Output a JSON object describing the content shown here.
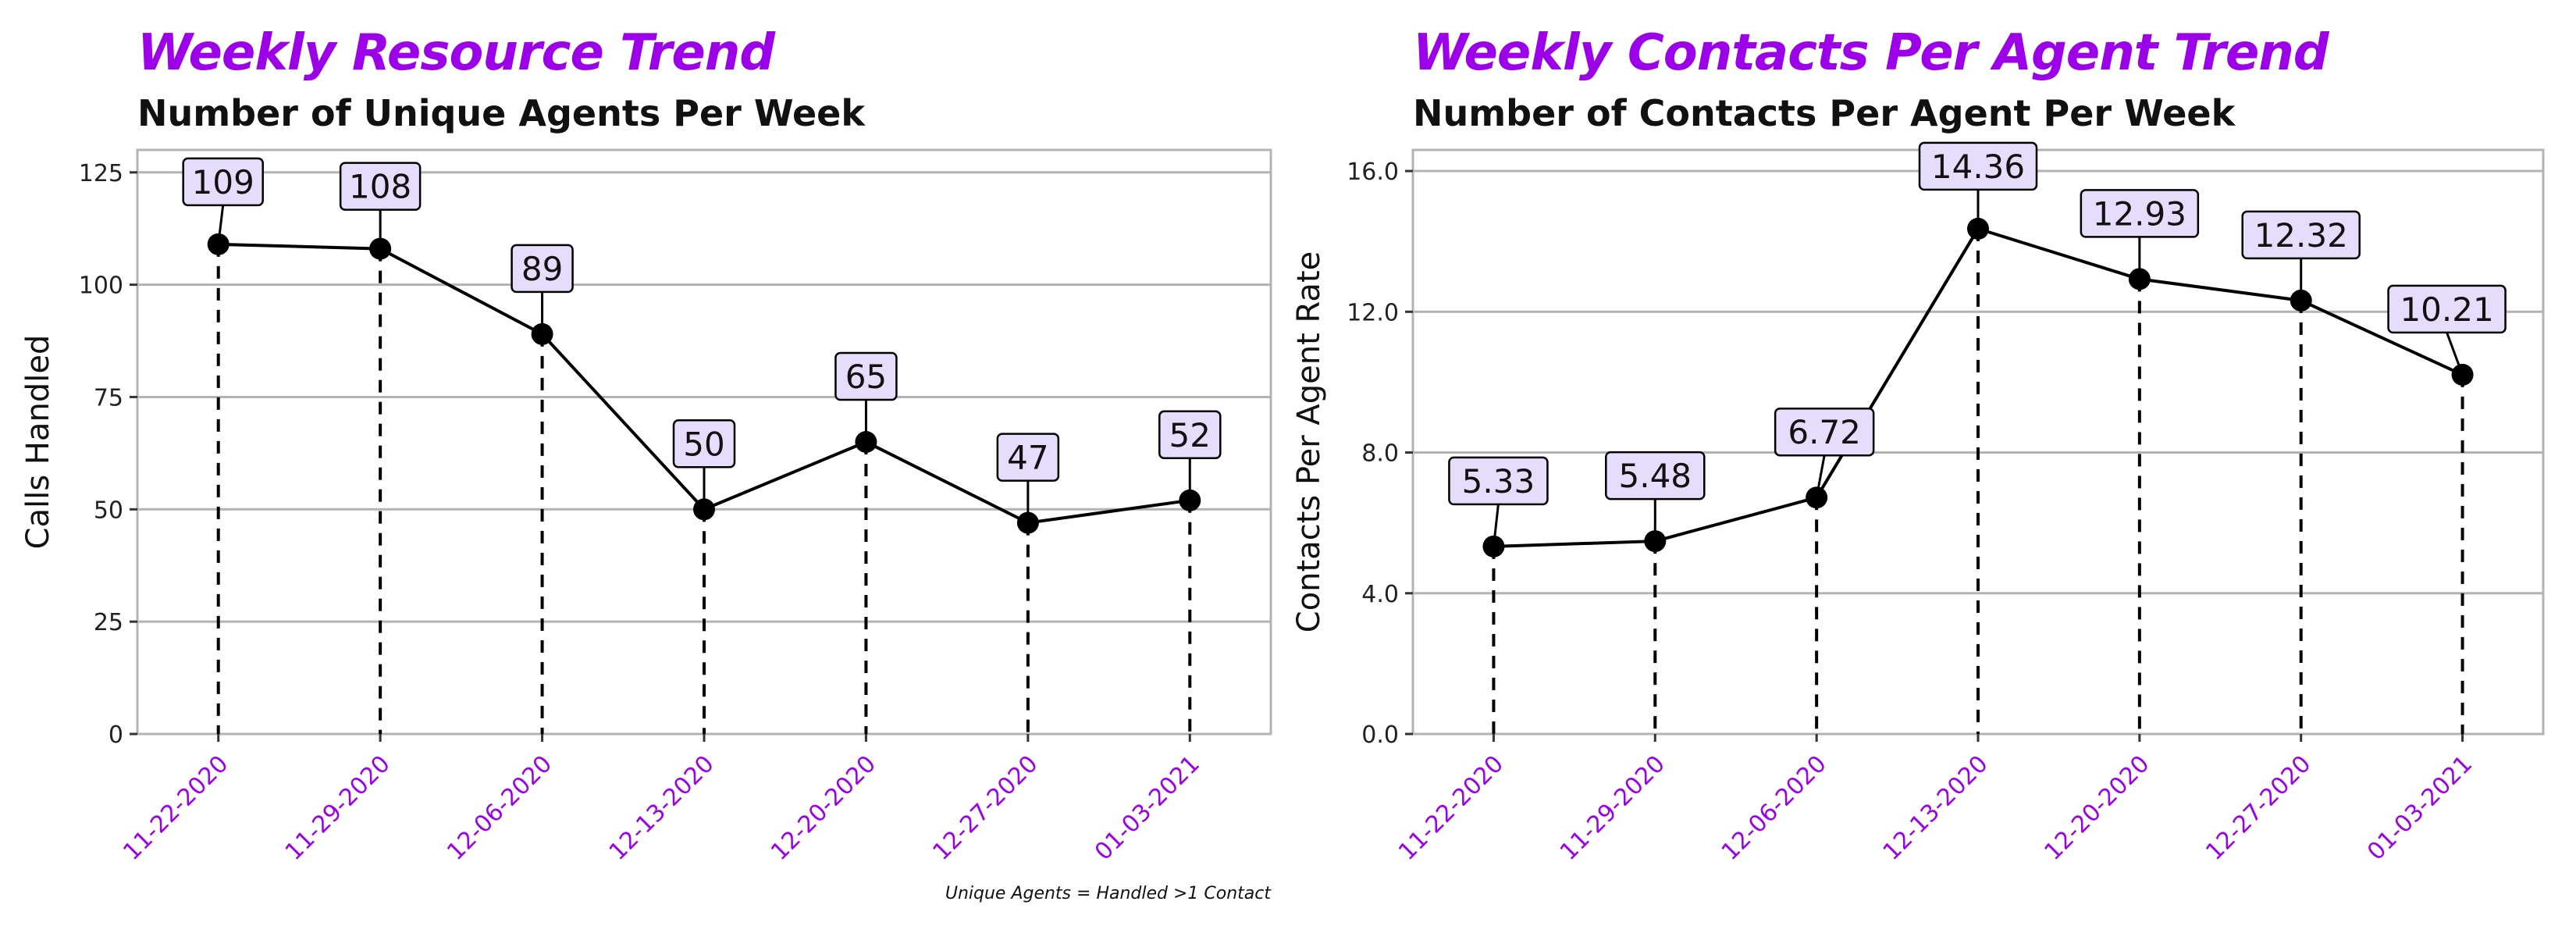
{
  "chart_data": [
    {
      "type": "line",
      "title": "Weekly Resource Trend",
      "subtitle": "Number of Unique Agents Per Week",
      "xlabel": "",
      "ylabel": "Calls Handled",
      "note": "Unique Agents = Handled >1 Contact",
      "ylim": [
        0,
        130
      ],
      "yticks": [
        0,
        25,
        50,
        75,
        100,
        125
      ],
      "ytick_labels": [
        "0",
        "25",
        "50",
        "75",
        "100",
        "125"
      ],
      "grid": "horizontal",
      "categories": [
        "11-22-2020",
        "11-29-2020",
        "12-06-2020",
        "12-13-2020",
        "12-20-2020",
        "12-27-2020",
        "01-03-2021"
      ],
      "values": [
        109,
        108,
        89,
        50,
        65,
        47,
        52
      ],
      "data_labels": [
        "109",
        "108",
        "89",
        "50",
        "65",
        "47",
        "52"
      ]
    },
    {
      "type": "line",
      "title": "Weekly Contacts Per Agent Trend",
      "subtitle": "Number of Contacts Per Agent Per Week",
      "xlabel": "",
      "ylabel": "Contacts Per Agent Rate",
      "ylim": [
        0,
        16.6
      ],
      "yticks": [
        0,
        4,
        8,
        12,
        16
      ],
      "ytick_labels": [
        "0.0",
        "4.0",
        "8.0",
        "12.0",
        "16.0"
      ],
      "grid": "horizontal",
      "categories": [
        "11-22-2020",
        "11-29-2020",
        "12-06-2020",
        "12-13-2020",
        "12-20-2020",
        "12-27-2020",
        "01-03-2021"
      ],
      "values": [
        5.33,
        5.48,
        6.72,
        14.36,
        12.93,
        12.32,
        10.21
      ],
      "data_labels": [
        "5.33",
        "5.48",
        "6.72",
        "14.36",
        "12.93",
        "12.32",
        "10.21"
      ]
    }
  ],
  "colors": {
    "title": "#9b00e8",
    "tick_x": "#9b00e8",
    "label_fill": "#e6dcfb",
    "grid": "#b3b3b3",
    "panel_border": "#b3b3b3",
    "line": "#000000",
    "point": "#000000"
  }
}
